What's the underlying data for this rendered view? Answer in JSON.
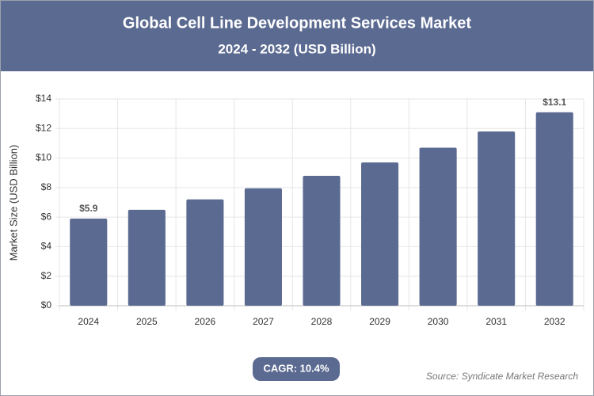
{
  "chart_data": {
    "type": "bar",
    "title": "Global Cell Line Development Services Market",
    "subtitle": "2024 - 2032 (USD Billion)",
    "y_label": "Market Size (USD Billion)",
    "categories": [
      "2024",
      "2025",
      "2026",
      "2027",
      "2028",
      "2029",
      "2030",
      "2031",
      "2032"
    ],
    "values": [
      5.9,
      6.5,
      7.2,
      7.95,
      8.8,
      9.7,
      10.7,
      11.8,
      13.1
    ],
    "value_labels": [
      "$5.9",
      null,
      null,
      null,
      null,
      null,
      null,
      null,
      "$13.1"
    ],
    "color": "#5b6a91",
    "ylim": [
      0,
      14
    ],
    "yticks": [
      {
        "value": 0,
        "label": "$0"
      },
      {
        "value": 2,
        "label": "$2"
      },
      {
        "value": 4,
        "label": "$4"
      },
      {
        "value": 6,
        "label": "$6"
      },
      {
        "value": 8,
        "label": "$8"
      },
      {
        "value": 10,
        "label": "$10"
      },
      {
        "value": 12,
        "label": "$12"
      },
      {
        "value": 14,
        "label": "$14"
      }
    ],
    "grid": true,
    "annotation": "CAGR: 10.4%",
    "source": "Source: Syndicate Market Research"
  }
}
